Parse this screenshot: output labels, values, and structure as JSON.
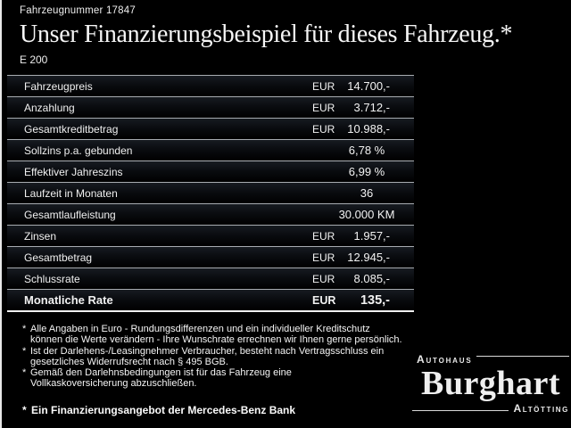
{
  "header": {
    "vehicle_number": "Fahrzeugnummer 17847",
    "title": "Unser Finanzierungsbeispiel für dieses Fahrzeug.*",
    "model": "E 200"
  },
  "table": {
    "rows": [
      {
        "label": "Fahrzeugpreis",
        "currency": "EUR",
        "value": "14.700,-"
      },
      {
        "label": "Anzahlung",
        "currency": "EUR",
        "value": "3.712,-"
      },
      {
        "label": "Gesamtkreditbetrag",
        "currency": "EUR",
        "value": "10.988,-"
      },
      {
        "label": "Sollzins p.a. gebunden",
        "currency": "",
        "value": "6,78 %"
      },
      {
        "label": "Effektiver Jahreszins",
        "currency": "",
        "value": "6,99 %"
      },
      {
        "label": "Laufzeit in Monaten",
        "currency": "",
        "value": "36"
      },
      {
        "label": "Gesamtlaufleistung",
        "currency": "",
        "value": "30.000 KM"
      },
      {
        "label": "Zinsen",
        "currency": "EUR",
        "value": "1.957,-"
      },
      {
        "label": "Gesamtbetrag",
        "currency": "EUR",
        "value": "12.945,-"
      },
      {
        "label": "Schlussrate",
        "currency": "EUR",
        "value": "8.085,-"
      },
      {
        "label": "Monatliche Rate",
        "currency": "EUR",
        "value": "135,-"
      }
    ]
  },
  "footnotes": {
    "marker": "*",
    "items": [
      {
        "lines": [
          "Alle Angaben in Euro - Rundungsdifferenzen und ein individueller Kreditschutz",
          "können die Werte verändern - Ihre Wunschrate errechnen wir Ihnen gerne persönlich."
        ]
      },
      {
        "lines": [
          "Ist der Darlehens-/Leasingnehmer Verbraucher, besteht nach Vertragsschluss ein",
          "gesetzliches Widerrufsrecht nach § 495 BGB."
        ]
      },
      {
        "lines": [
          "Gemäß den Darlehnsbedingungen ist für das Fahrzeug eine",
          "Vollkaskoversicherung abzuschließen."
        ]
      }
    ],
    "bank_note": "Ein Finanzierungsangebot der Mercedes-Benz Bank"
  },
  "logo": {
    "top": "Autohaus",
    "name": "Burghart",
    "bottom": "Altötting"
  },
  "colors": {
    "background": "#000000",
    "text": "#f2f2f2",
    "separator": "#c6cad0",
    "total_separator": "#f0f0f0",
    "accent_border": "#e8e8e8"
  }
}
